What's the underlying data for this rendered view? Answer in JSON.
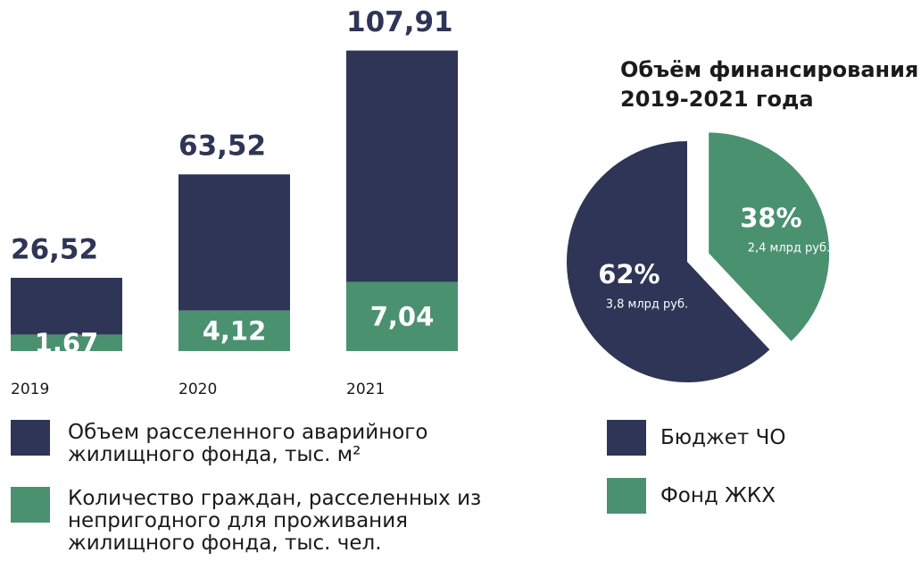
{
  "chart_data": [
    {
      "type": "bar",
      "categories": [
        "2019",
        "2020",
        "2021"
      ],
      "series": [
        {
          "name": "Объем расселенного аварийного жилищного фонда, тыс. м²",
          "color": "#2e3556",
          "values": [
            26.52,
            63.52,
            107.91
          ],
          "value_labels": [
            "26,52",
            "63,52",
            "107,91"
          ]
        },
        {
          "name": "Количество граждан, расселенных из непригодного для проживания жилищного фонда, тыс. чел.",
          "color": "#4a9170",
          "values": [
            1.67,
            4.12,
            7.04
          ],
          "value_labels": [
            "1,67",
            "4,12",
            "7,04"
          ]
        }
      ]
    },
    {
      "type": "pie",
      "title": "Объём финансирования 2019-2021 года",
      "labels": [
        "Бюджет ЧО",
        "Фонд ЖКХ"
      ],
      "values": [
        62,
        38
      ],
      "value_labels": [
        "62%",
        "38%"
      ],
      "annotations": [
        "3,8 млрд руб.",
        "2,4 млрд руб."
      ],
      "colors": [
        "#2e3556",
        "#4a9170"
      ]
    }
  ]
}
